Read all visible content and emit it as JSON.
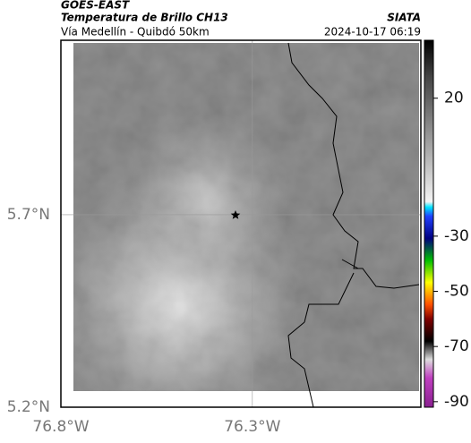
{
  "header": {
    "title": "GOES-EAST",
    "subtitle": "Temperatura de Brillo CH13",
    "region": "Vía Medellín - Quibdó 50km",
    "source": "SIATA",
    "timestamp": "2024-10-17 06:19"
  },
  "map": {
    "xlim": [
      -76.8,
      -75.86
    ],
    "ylim": [
      5.2,
      6.153
    ],
    "xticks": [
      {
        "value": -76.8,
        "label": "76.8°W"
      },
      {
        "value": -76.3,
        "label": "76.3°W"
      }
    ],
    "yticks": [
      {
        "value": 5.7,
        "label": "5.7°N"
      },
      {
        "value": 5.2,
        "label": "5.2°N"
      }
    ],
    "grid": true
  },
  "colorbar": {
    "range": [
      41,
      -92
    ],
    "ticks": [
      20,
      -30,
      -50,
      -70,
      -90
    ]
  }
}
